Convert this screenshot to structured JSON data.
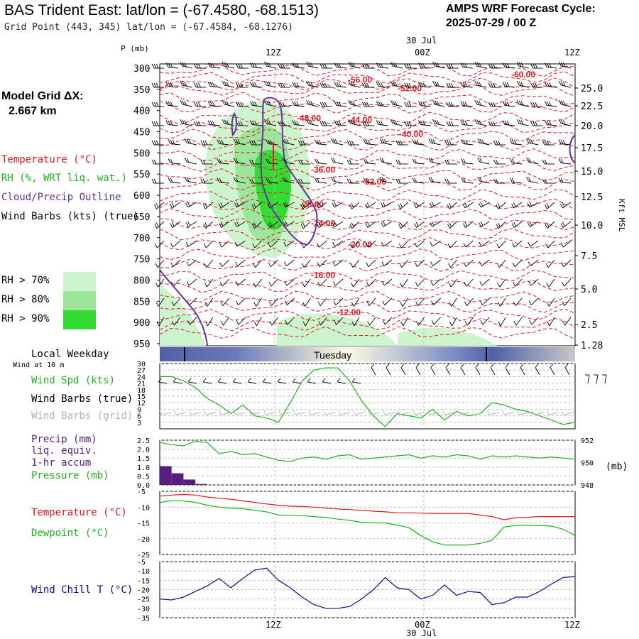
{
  "header": {
    "title": "BAS Trident East:  lat/lon = (-67.4580, -68.1513)",
    "grid_point": "Grid Point (443, 345) lat/lon = (-67.4584, -68.1276)",
    "cycle_line1": "AMPS WRF Forecast Cycle:",
    "cycle_line2": "2025-07-29 / 00  Z",
    "model_grid_label": "Model Grid ΔX:",
    "model_grid_value": "2.667 km"
  },
  "legend": {
    "temperature": "Temperature (°C)",
    "rh": "RH (%, WRT liq. wat.)",
    "cloud": "Cloud/Precip Outline",
    "wind": "Wind Barbs (kts) (true)",
    "rh70": "RH > 70%",
    "rh80": "RH > 80%",
    "rh90": "RH > 90%",
    "local_weekday": "Local Weekday",
    "wind_10m": "Wind at 10 m",
    "wind_spd": "Wind Spd (kts)",
    "wind_true": "Wind Barbs (true)",
    "wind_grid": "Wind Barbs (grid)",
    "precip1": "Precip (mm)",
    "precip2": "liq. equiv.",
    "precip3": "1-hr accum",
    "pressure": "Pressure (mb)",
    "temp2": "Temperature (°C)",
    "dewpoint": "Dewpoint (°C)",
    "windchill": "Wind Chill T (°C)",
    "p_axis": "P (mb)",
    "kft": "Kft MSL",
    "mb_unit": "(mb)",
    "weekday": "Tuesday",
    "date_label": "30 Jul"
  },
  "colors": {
    "temperature": "#e8141e",
    "rh70": "#cdf5cd",
    "rh80": "#9be69b",
    "rh90": "#32dc32",
    "cloud": "#6432a0",
    "wind": "#000000",
    "wind_grid": "#b4b4b4",
    "speed": "#1eb41e",
    "precip": "#5a1e82",
    "dewpoint": "#1eb41e",
    "windchill": "#0a0a9b",
    "grid": "#bbbbbb"
  },
  "chart_data": [
    {
      "type": "contour",
      "name": "cross-section",
      "x_ticks": [
        "12Z",
        "00Z",
        "12Z"
      ],
      "pressure_ticks": [
        300,
        350,
        400,
        450,
        500,
        550,
        600,
        650,
        700,
        750,
        800,
        850,
        900,
        950
      ],
      "kft_ticks": [
        "25.0",
        "22.5",
        "20.0",
        "17.5",
        "15.0",
        "12.5",
        "10.0",
        "7.5",
        "5.0",
        "2.5",
        "1.28"
      ],
      "temperature_contours": [
        {
          "label": "-60.00",
          "pressure": 315
        },
        {
          "label": "-56.00",
          "pressure": 328
        },
        {
          "label": "-52.00",
          "pressure": 348
        },
        {
          "label": "-48.00",
          "pressure": 418
        },
        {
          "label": "-44.00",
          "pressure": 422
        },
        {
          "label": "-40.00",
          "pressure": 456
        },
        {
          "label": "-36.00",
          "pressure": 540
        },
        {
          "label": "-32.00",
          "pressure": 568
        },
        {
          "label": "-28.00",
          "pressure": 622
        },
        {
          "label": "-24.00",
          "pressure": 666
        },
        {
          "label": "-20.00",
          "pressure": 716
        },
        {
          "label": "-16.00",
          "pressure": 788
        },
        {
          "label": "-12.00",
          "pressure": 876
        }
      ]
    },
    {
      "type": "line",
      "name": "wind-speed",
      "y_ticks": [
        3,
        6,
        9,
        12,
        15,
        18,
        21,
        24,
        27,
        30
      ],
      "ylim": [
        0,
        30
      ],
      "values": [
        24,
        24,
        22,
        19,
        14,
        11,
        7,
        11,
        6,
        5,
        3,
        12,
        22,
        27,
        28,
        28,
        22,
        13,
        6,
        1,
        7,
        6,
        5,
        9,
        4,
        8,
        6,
        7,
        12,
        11,
        9,
        8,
        6,
        4,
        2,
        3
      ]
    },
    {
      "type": "bar+line",
      "name": "precip-pressure",
      "precip_ticks": [
        "0.0",
        "0.5",
        "1.0",
        "1.5",
        "2.0",
        "2.5"
      ],
      "precip_ylim": [
        0,
        2.5
      ],
      "precip": [
        1.05,
        0.65,
        0.3,
        0.05
      ],
      "pressure_ticks": [
        948,
        950,
        952
      ],
      "pressure_ylim": [
        948,
        952
      ],
      "pressure": [
        951.8,
        951.6,
        951.5,
        951.9,
        951.8,
        950.8,
        951.0,
        950.7,
        950.8,
        950.5,
        950.2,
        950.1,
        950.4,
        950.5,
        950.3,
        950.6,
        950.7,
        950.3,
        950.4,
        950.5,
        950.6,
        950.7,
        950.4,
        950.6,
        950.5,
        950.7,
        950.6,
        950.3,
        950.6,
        950.5,
        950.6,
        950.5,
        950.4,
        950.5,
        950.4,
        950.3
      ]
    },
    {
      "type": "line",
      "name": "temperature-dewpoint",
      "y_ticks": [
        -5,
        -10,
        -15,
        -20,
        -25
      ],
      "ylim": [
        -25,
        -5
      ],
      "temperature": [
        -6.5,
        -6.2,
        -6.0,
        -6.2,
        -6.8,
        -7.2,
        -7.5,
        -8.0,
        -8.5,
        -9.0,
        -9.4,
        -9.7,
        -9.8,
        -10.0,
        -10.3,
        -10.6,
        -10.8,
        -11.0,
        -11.3,
        -11.5,
        -11.8,
        -11.8,
        -11.9,
        -12.0,
        -12.0,
        -12.0,
        -12.0,
        -12.5,
        -13.0,
        -14.0,
        -13.4,
        -13.2,
        -13.0,
        -13.0,
        -13.0,
        -13.0
      ],
      "dewpoint": [
        -8.5,
        -8.0,
        -8.0,
        -8.5,
        -9.4,
        -10.0,
        -10.3,
        -10.5,
        -11.0,
        -11.5,
        -12.5,
        -12.6,
        -12.7,
        -13.0,
        -13.3,
        -13.8,
        -14.2,
        -14.8,
        -15.0,
        -15.0,
        -15.7,
        -16.5,
        -19.0,
        -21.0,
        -22.0,
        -22.0,
        -22.0,
        -21.5,
        -20.5,
        -16.3,
        -15.8,
        -15.7,
        -15.8,
        -16.0,
        -17.0,
        -19.0
      ]
    },
    {
      "type": "line",
      "name": "wind-chill",
      "y_ticks": [
        -5,
        -10,
        -15,
        -20,
        -25,
        -30,
        -35
      ],
      "ylim": [
        -35,
        -5
      ],
      "values": [
        -25,
        -25.5,
        -24,
        -21,
        -18,
        -14,
        -19,
        -14,
        -9.5,
        -8.5,
        -15,
        -19,
        -24,
        -28,
        -30,
        -30,
        -29,
        -25,
        -20,
        -13.5,
        -19,
        -20,
        -25,
        -23,
        -17.5,
        -23,
        -21,
        -21.5,
        -28,
        -27,
        -24,
        -24,
        -21,
        -17,
        -13.5,
        -13
      ]
    }
  ]
}
